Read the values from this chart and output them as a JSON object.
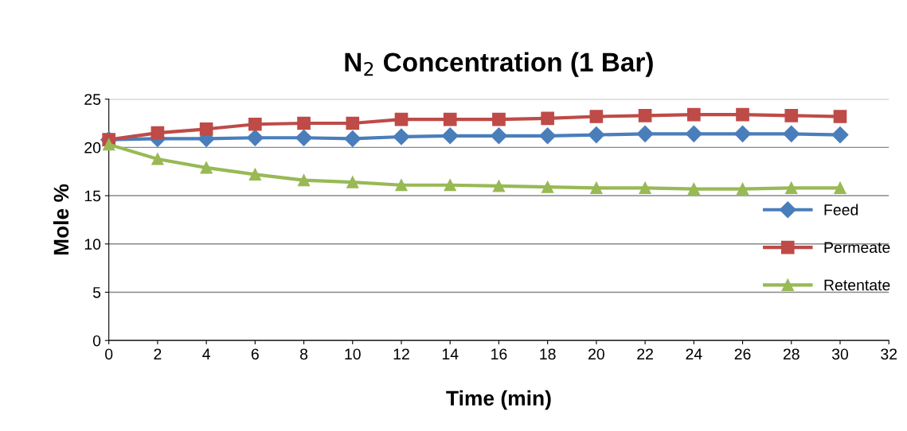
{
  "chart_data": {
    "type": "line",
    "title": "N$_{2}$ Concentration (1 Bar)",
    "xlabel": "Time (min)",
    "ylabel": "Mole %",
    "x": [
      0,
      2,
      4,
      6,
      8,
      10,
      12,
      14,
      16,
      18,
      20,
      22,
      24,
      26,
      28,
      30
    ],
    "series": [
      {
        "name": "Feed",
        "color": "#4a7ebb",
        "marker": "diamond",
        "values": [
          20.8,
          20.9,
          20.9,
          21.0,
          21.0,
          20.9,
          21.1,
          21.2,
          21.2,
          21.2,
          21.3,
          21.4,
          21.4,
          21.4,
          21.4,
          21.3
        ]
      },
      {
        "name": "Permeate",
        "color": "#be4b48",
        "marker": "square",
        "values": [
          20.8,
          21.5,
          21.9,
          22.4,
          22.5,
          22.5,
          22.9,
          22.9,
          22.9,
          23.0,
          23.2,
          23.3,
          23.4,
          23.4,
          23.3,
          23.2
        ]
      },
      {
        "name": "Retentate",
        "color": "#98b954",
        "marker": "triangle",
        "values": [
          20.3,
          18.8,
          17.9,
          17.2,
          16.6,
          16.4,
          16.1,
          16.1,
          16.0,
          15.9,
          15.8,
          15.8,
          15.7,
          15.7,
          15.8,
          15.8
        ]
      }
    ],
    "xlim": [
      0,
      32
    ],
    "xticks": [
      0,
      2,
      4,
      6,
      8,
      10,
      12,
      14,
      16,
      18,
      20,
      22,
      24,
      26,
      28,
      30,
      32
    ],
    "ylim": [
      0,
      25
    ],
    "yticks": [
      0,
      5,
      10,
      15,
      20,
      25
    ],
    "grid": "y",
    "legend": "right",
    "line_style": "solid"
  }
}
